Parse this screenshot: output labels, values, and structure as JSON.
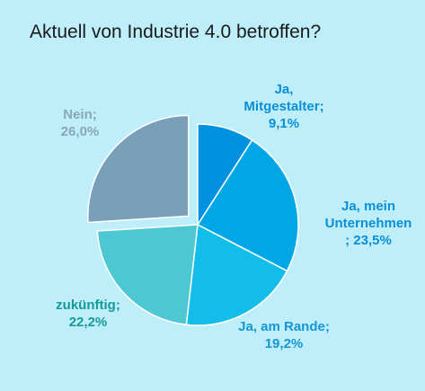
{
  "chart_data": {
    "type": "pie",
    "title": "Aktuell von Industrie 4.0 betroffen?",
    "slices": [
      {
        "label_lines": [
          "Ja,",
          "Mitgestalter;",
          "9,1%"
        ],
        "name": "Ja, Mitgestalter",
        "value": 9.1,
        "color": "#0090e0",
        "label_color": "#0a8fd8",
        "exploded": false
      },
      {
        "label_lines": [
          "Ja, mein",
          "Unternehmen",
          "; 23,5%"
        ],
        "name": "Ja, mein Unternehmen",
        "value": 23.5,
        "color": "#00a7e6",
        "label_color": "#0a8fd8",
        "exploded": false
      },
      {
        "label_lines": [
          "Ja, am Rande;",
          "19,2%"
        ],
        "name": "Ja, am Rande",
        "value": 19.2,
        "color": "#12bde9",
        "label_color": "#1597d6",
        "exploded": false
      },
      {
        "label_lines": [
          "zukünftig;",
          "22,2%"
        ],
        "name": "zukünftig",
        "value": 22.2,
        "color": "#4dc7d2",
        "label_color": "#159a9a",
        "exploded": false
      },
      {
        "label_lines": [
          "Nein;",
          "26,0%"
        ],
        "name": "Nein",
        "value": 26.0,
        "color": "#7a9fb8",
        "label_color": "#8aa6b8",
        "exploded": true
      }
    ]
  }
}
